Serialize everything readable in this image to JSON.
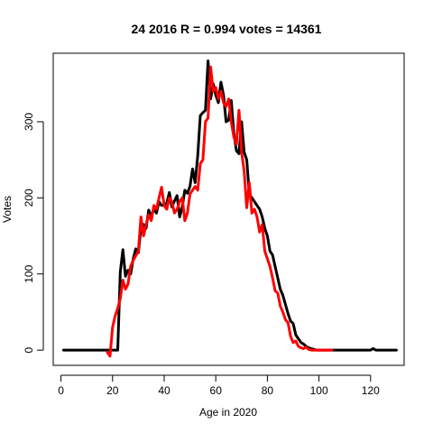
{
  "chart_data": {
    "type": "line",
    "title": "24 2016 R = 0.994 votes = 14361",
    "xlabel": "Age in 2020",
    "ylabel": "Votes",
    "xlim": [
      -3,
      133
    ],
    "ylim": [
      -20,
      390
    ],
    "xticks": [
      0,
      20,
      40,
      60,
      80,
      100,
      120
    ],
    "yticks": [
      0,
      100,
      200,
      300
    ],
    "series": [
      {
        "name": "black",
        "color": "#000000",
        "x": [
          1,
          2,
          3,
          4,
          5,
          6,
          7,
          8,
          9,
          10,
          11,
          12,
          13,
          14,
          15,
          16,
          17,
          18,
          19,
          20,
          21,
          22,
          23,
          24,
          25,
          26,
          27,
          28,
          29,
          30,
          31,
          32,
          33,
          34,
          35,
          36,
          37,
          38,
          39,
          40,
          41,
          42,
          43,
          44,
          45,
          46,
          47,
          48,
          49,
          50,
          51,
          52,
          53,
          54,
          55,
          56,
          57,
          58,
          59,
          60,
          61,
          62,
          63,
          64,
          65,
          66,
          67,
          68,
          69,
          70,
          71,
          72,
          73,
          74,
          75,
          76,
          77,
          78,
          79,
          80,
          81,
          82,
          83,
          84,
          85,
          86,
          87,
          88,
          89,
          90,
          91,
          92,
          93,
          94,
          95,
          96,
          97,
          98,
          99,
          100,
          101,
          102,
          103,
          104,
          105,
          106,
          107,
          108,
          109,
          110,
          111,
          112,
          113,
          114,
          115,
          116,
          117,
          118,
          119,
          120,
          121,
          122,
          123,
          124,
          125,
          126,
          127,
          128,
          129,
          130
        ],
        "values": [
          0,
          0,
          0,
          0,
          0,
          0,
          0,
          0,
          0,
          0,
          0,
          0,
          0,
          0,
          0,
          0,
          0,
          0,
          0,
          0,
          0,
          0,
          103,
          132,
          97,
          105,
          100,
          120,
          133,
          128,
          160,
          165,
          160,
          184,
          175,
          186,
          180,
          195,
          190,
          191,
          193,
          207,
          188,
          196,
          203,
          175,
          188,
          210,
          206,
          215,
          238,
          220,
          255,
          308,
          312,
          315,
          380,
          330,
          350,
          335,
          325,
          352,
          335,
          300,
          302,
          328,
          285,
          262,
          258,
          300,
          260,
          250,
          205,
          200,
          195,
          190,
          185,
          175,
          160,
          150,
          130,
          125,
          110,
          95,
          80,
          72,
          60,
          48,
          38,
          35,
          20,
          15,
          10,
          8,
          5,
          3,
          2,
          1,
          0,
          0,
          0,
          0,
          0,
          0,
          0,
          0,
          0,
          0,
          0,
          0,
          0,
          0,
          0,
          0,
          0,
          0,
          0,
          0,
          0,
          0,
          2,
          0,
          0,
          0,
          0,
          0,
          0,
          0,
          0,
          0
        ]
      },
      {
        "name": "red",
        "color": "#ff0000",
        "x": [
          18,
          19,
          20,
          21,
          22,
          23,
          24,
          25,
          26,
          27,
          28,
          29,
          30,
          31,
          32,
          33,
          34,
          35,
          36,
          37,
          38,
          39,
          40,
          41,
          42,
          43,
          44,
          45,
          46,
          47,
          48,
          49,
          50,
          51,
          52,
          53,
          54,
          55,
          56,
          57,
          58,
          59,
          60,
          61,
          62,
          63,
          64,
          65,
          66,
          67,
          68,
          69,
          70,
          71,
          72,
          73,
          74,
          75,
          76,
          77,
          78,
          79,
          80,
          81,
          82,
          83,
          84,
          85,
          86,
          87,
          88,
          89,
          90,
          91,
          92,
          93,
          94,
          95,
          96,
          97,
          98,
          99,
          100,
          101,
          102,
          103,
          104,
          105
        ],
        "values": [
          -3,
          -8,
          30,
          45,
          55,
          68,
          92,
          80,
          87,
          110,
          118,
          124,
          130,
          175,
          150,
          165,
          178,
          170,
          190,
          185,
          200,
          214,
          190,
          185,
          200,
          195,
          180,
          185,
          195,
          200,
          170,
          180,
          205,
          210,
          215,
          210,
          245,
          250,
          300,
          305,
          372,
          340,
          345,
          330,
          340,
          325,
          320,
          330,
          300,
          280,
          270,
          315,
          260,
          235,
          187,
          220,
          180,
          185,
          175,
          155,
          165,
          130,
          120,
          110,
          95,
          78,
          75,
          58,
          50,
          40,
          36,
          18,
          10,
          12,
          5,
          3,
          2,
          4,
          1,
          0,
          0,
          0,
          0,
          0,
          0,
          0,
          0,
          0
        ]
      }
    ]
  }
}
